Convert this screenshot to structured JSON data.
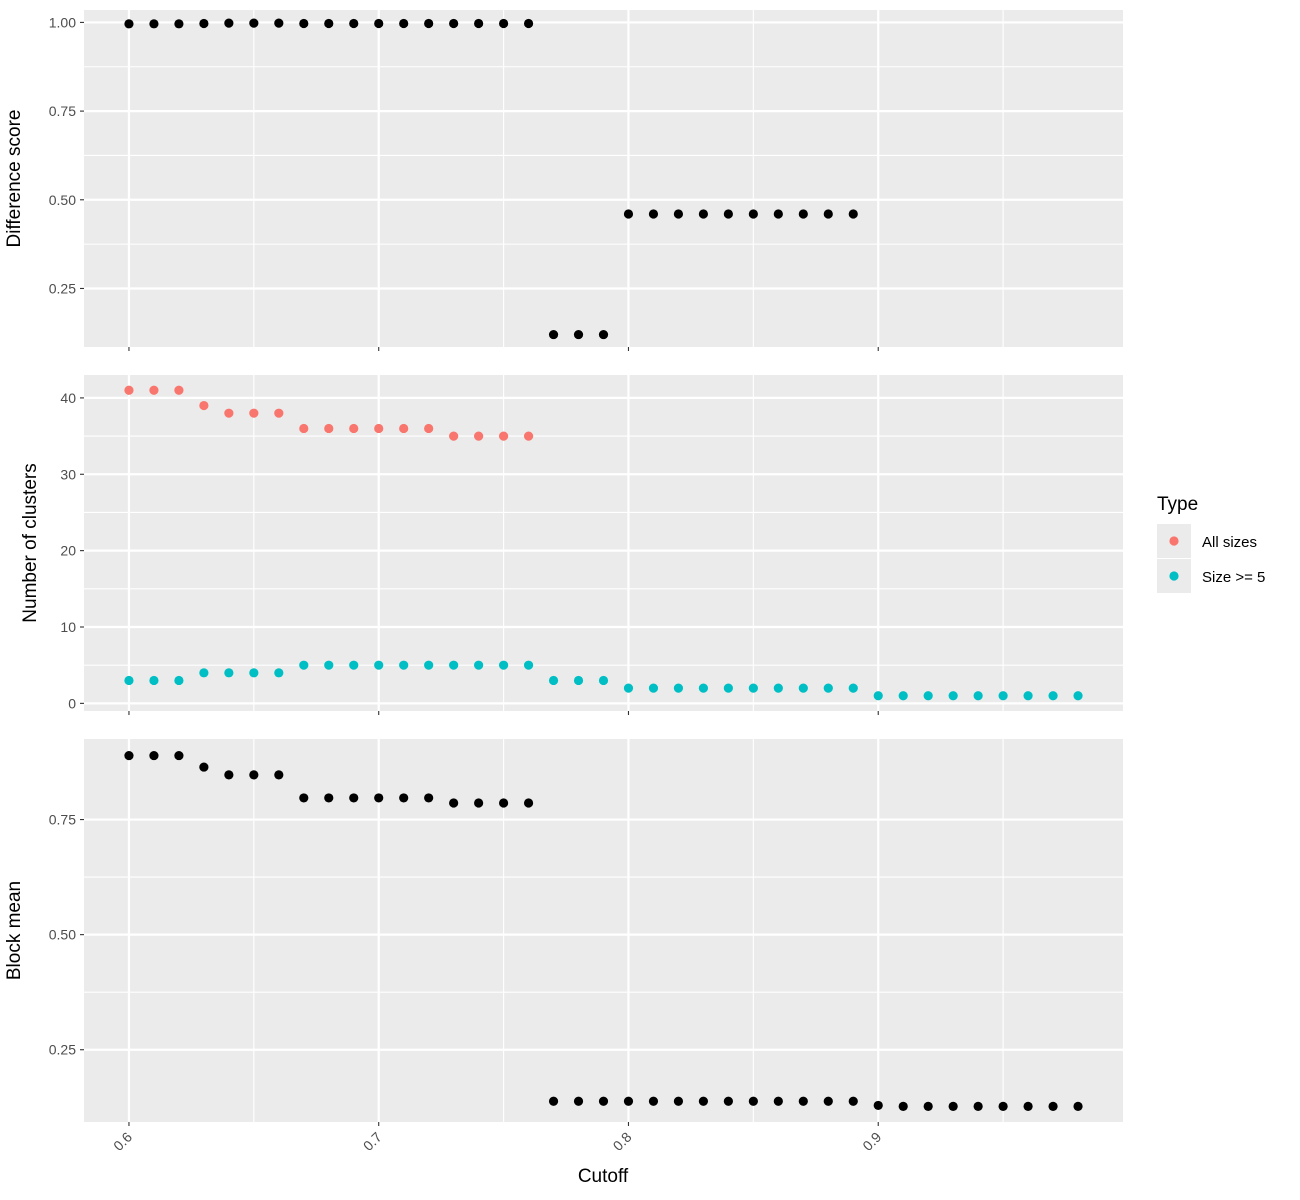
{
  "chart_data": {
    "type": "scatter",
    "xlabel": "Cutoff",
    "x_ticks": [
      "0.6",
      "0.7",
      "0.8",
      "0.9"
    ],
    "x_tick_values": [
      0.6,
      0.7,
      0.8,
      0.9
    ],
    "xlim": [
      0.582,
      0.998
    ],
    "grid": true,
    "legend_position": "right",
    "legend": {
      "title": "Type",
      "entries": [
        {
          "label": "All sizes",
          "color": "#F8766D"
        },
        {
          "label": "Size >= 5",
          "color": "#00BFC4"
        }
      ]
    },
    "panels": [
      {
        "ylabel": "Difference score",
        "ylim": [
          0.085,
          1.035
        ],
        "y_ticks": [
          "0.25",
          "0.50",
          "0.75",
          "1.00"
        ],
        "y_tick_values": [
          0.25,
          0.5,
          0.75,
          1.0
        ],
        "series": [
          {
            "color": "#000000",
            "x": [
              0.6,
              0.61,
              0.62,
              0.63,
              0.64,
              0.65,
              0.66,
              0.67,
              0.68,
              0.69,
              0.7,
              0.71,
              0.72,
              0.73,
              0.74,
              0.75,
              0.76,
              0.77,
              0.78,
              0.79,
              0.8,
              0.81,
              0.82,
              0.83,
              0.84,
              0.85,
              0.86,
              0.87,
              0.88,
              0.89
            ],
            "y": [
              0.996,
              0.996,
              0.996,
              0.997,
              0.998,
              0.998,
              0.998,
              0.997,
              0.997,
              0.997,
              0.997,
              0.997,
              0.997,
              0.997,
              0.997,
              0.997,
              0.997,
              0.12,
              0.12,
              0.12,
              0.46,
              0.46,
              0.46,
              0.46,
              0.46,
              0.46,
              0.46,
              0.46,
              0.46,
              0.46
            ]
          }
        ]
      },
      {
        "ylabel": "Number of clusters",
        "ylim": [
          -1.0,
          43.0
        ],
        "y_ticks": [
          "0",
          "10",
          "20",
          "30",
          "40"
        ],
        "y_tick_values": [
          0,
          10,
          20,
          30,
          40
        ],
        "series": [
          {
            "name": "All sizes",
            "color": "#F8766D",
            "x": [
              0.6,
              0.61,
              0.62,
              0.63,
              0.64,
              0.65,
              0.66,
              0.67,
              0.68,
              0.69,
              0.7,
              0.71,
              0.72,
              0.73,
              0.74,
              0.75,
              0.76
            ],
            "y": [
              41,
              41,
              41,
              39,
              38,
              38,
              38,
              36,
              36,
              36,
              36,
              36,
              36,
              35,
              35,
              35,
              35
            ]
          },
          {
            "name": "Size >= 5",
            "color": "#00BFC4",
            "x": [
              0.6,
              0.61,
              0.62,
              0.63,
              0.64,
              0.65,
              0.66,
              0.67,
              0.68,
              0.69,
              0.7,
              0.71,
              0.72,
              0.73,
              0.74,
              0.75,
              0.76,
              0.77,
              0.78,
              0.79,
              0.8,
              0.81,
              0.82,
              0.83,
              0.84,
              0.85,
              0.86,
              0.87,
              0.88,
              0.89,
              0.9,
              0.91,
              0.92,
              0.93,
              0.94,
              0.95,
              0.96,
              0.97,
              0.98
            ],
            "y": [
              3,
              3,
              3,
              4,
              4,
              4,
              4,
              5,
              5,
              5,
              5,
              5,
              5,
              5,
              5,
              5,
              5,
              3,
              3,
              3,
              2,
              2,
              2,
              2,
              2,
              2,
              2,
              2,
              2,
              2,
              1,
              1,
              1,
              1,
              1,
              1,
              1,
              1,
              1
            ]
          }
        ]
      },
      {
        "ylabel": "Block mean",
        "ylim": [
          0.093,
          0.925
        ],
        "y_ticks": [
          "0.25",
          "0.50",
          "0.75"
        ],
        "y_tick_values": [
          0.25,
          0.5,
          0.75
        ],
        "series": [
          {
            "color": "#000000",
            "x": [
              0.6,
              0.61,
              0.62,
              0.63,
              0.64,
              0.65,
              0.66,
              0.67,
              0.68,
              0.69,
              0.7,
              0.71,
              0.72,
              0.73,
              0.74,
              0.75,
              0.76,
              0.77,
              0.78,
              0.79,
              0.8,
              0.81,
              0.82,
              0.83,
              0.84,
              0.85,
              0.86,
              0.87,
              0.88,
              0.89,
              0.9,
              0.91,
              0.92,
              0.93,
              0.94,
              0.95,
              0.96,
              0.97,
              0.98
            ],
            "y": [
              0.889,
              0.889,
              0.889,
              0.864,
              0.847,
              0.847,
              0.847,
              0.797,
              0.797,
              0.797,
              0.797,
              0.797,
              0.797,
              0.786,
              0.786,
              0.786,
              0.786,
              0.138,
              0.138,
              0.138,
              0.138,
              0.138,
              0.138,
              0.138,
              0.138,
              0.138,
              0.138,
              0.138,
              0.138,
              0.138,
              0.129,
              0.127,
              0.127,
              0.127,
              0.127,
              0.127,
              0.127,
              0.127,
              0.127
            ]
          }
        ]
      }
    ]
  }
}
